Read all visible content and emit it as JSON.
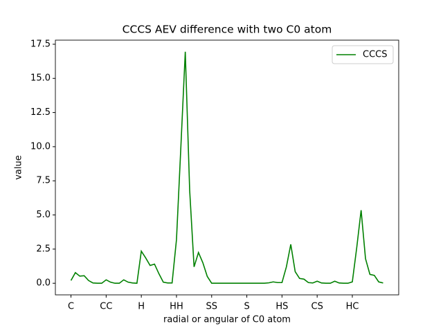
{
  "chart_data": {
    "type": "line",
    "title": "CCCS AEV difference with two C0 atom",
    "xlabel": "radial or angular of C0 atom",
    "ylabel": "value",
    "x": [
      0,
      1,
      2,
      3,
      4,
      5,
      6,
      7,
      8,
      9,
      10,
      11,
      12,
      13,
      14,
      15,
      16,
      17,
      18,
      19,
      20,
      21,
      22,
      23,
      24,
      25,
      26,
      27,
      28,
      29,
      30,
      31,
      32,
      33,
      34,
      35,
      36,
      37,
      38,
      39,
      40,
      41,
      42,
      43,
      44,
      45,
      46,
      47,
      48,
      49,
      50,
      51,
      52,
      53,
      54,
      55,
      56,
      57,
      58,
      59,
      60,
      61,
      62,
      63,
      64,
      65,
      66,
      67,
      68,
      69,
      70,
      71
    ],
    "series": [
      {
        "name": "CCCS",
        "color": "#008000",
        "values": [
          0.2,
          0.78,
          0.52,
          0.55,
          0.2,
          0.02,
          0,
          0,
          0.25,
          0.08,
          0,
          0,
          0.25,
          0.08,
          0.02,
          0,
          2.35,
          1.85,
          1.3,
          1.4,
          0.7,
          0.08,
          0.02,
          0.02,
          3.2,
          10,
          16.95,
          6.8,
          1.2,
          2.25,
          1.5,
          0.5,
          0,
          0,
          0,
          0,
          0,
          0,
          0,
          0,
          0,
          0,
          0,
          0,
          0,
          0.03,
          0.1,
          0.05,
          0.05,
          1.2,
          2.85,
          0.85,
          0.35,
          0.3,
          0.05,
          0.02,
          0.15,
          0.02,
          0,
          0,
          0.15,
          0.02,
          0,
          0,
          0.1,
          2.6,
          5.35,
          1.8,
          0.65,
          0.58,
          0.1,
          0.02
        ]
      }
    ],
    "xlim": [
      -3.55,
      74.55
    ],
    "xticks": [
      {
        "value": 0,
        "label": "C"
      },
      {
        "value": 8,
        "label": "CC"
      },
      {
        "value": 16,
        "label": "H"
      },
      {
        "value": 24,
        "label": "HH"
      },
      {
        "value": 32,
        "label": "SS"
      },
      {
        "value": 40,
        "label": "S"
      },
      {
        "value": 48,
        "label": "HS"
      },
      {
        "value": 56,
        "label": "CS"
      },
      {
        "value": 64,
        "label": "HC"
      }
    ],
    "ylim": [
      -0.85,
      17.8
    ],
    "yticks": [
      {
        "value": 0,
        "label": "0.0"
      },
      2.5,
      {
        "value": 5,
        "label": "5.0"
      },
      7.5,
      {
        "value": 10,
        "label": "10.0"
      },
      12.5,
      {
        "value": 15,
        "label": "15.0"
      },
      17.5
    ],
    "legend": "upper right",
    "grid": false
  }
}
